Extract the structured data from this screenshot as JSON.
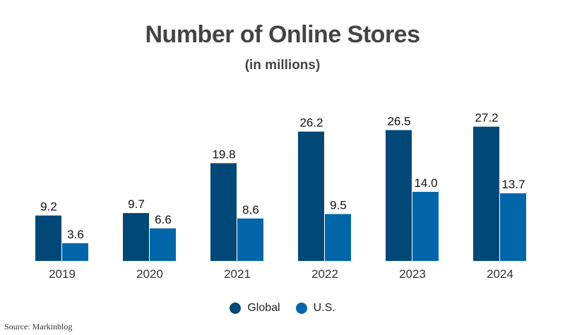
{
  "chart_data": {
    "type": "bar",
    "title": "Number of Online Stores",
    "subtitle": "(in millions)",
    "categories": [
      "2019",
      "2020",
      "2021",
      "2022",
      "2023",
      "2024"
    ],
    "series": [
      {
        "name": "Global",
        "color": "#004878",
        "values": [
          9.2,
          9.7,
          19.8,
          26.2,
          26.5,
          27.2
        ]
      },
      {
        "name": "U.S.",
        "color": "#0066aa",
        "values": [
          3.6,
          6.6,
          8.6,
          9.5,
          14.0,
          13.7
        ]
      }
    ],
    "ylim": [
      0,
      30
    ],
    "grid": false,
    "legend_position": "bottom-center",
    "source": "Source: Markinblog"
  }
}
